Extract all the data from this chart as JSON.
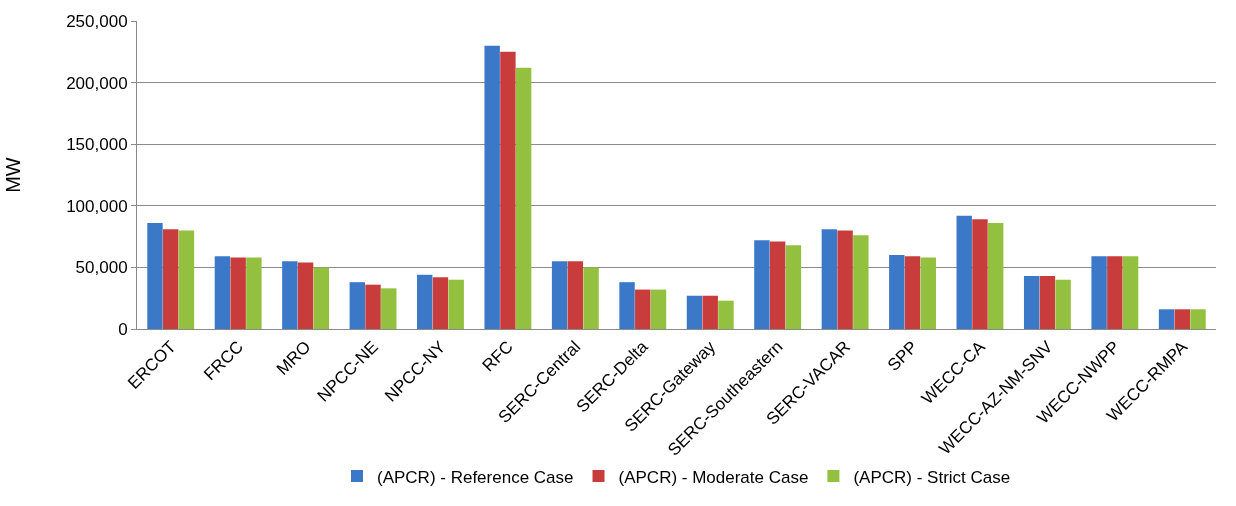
{
  "chart_data": {
    "type": "bar",
    "ylabel": "MW",
    "categories": [
      "ERCOT",
      "FRCC",
      "MRO",
      "NPCC-NE",
      "NPCC-NY",
      "RFC",
      "SERC-Central",
      "SERC-Delta",
      "SERC-Gateway",
      "SERC-Southeastern",
      "SERC-VACAR",
      "SPP",
      "WECC-CA",
      "WECC-AZ-NM-SNV",
      "WECC-NWPP",
      "WECC-RMPA"
    ],
    "series": [
      {
        "name": "(APCR) - Reference Case",
        "color": "#3c78c8",
        "values": [
          86000,
          59000,
          55000,
          38000,
          44000,
          230000,
          55000,
          38000,
          27000,
          72000,
          81000,
          60000,
          92000,
          43000,
          59000,
          16000
        ]
      },
      {
        "name": "(APCR) - Moderate Case",
        "color": "#c83c3c",
        "values": [
          81000,
          58000,
          54000,
          36000,
          42000,
          225000,
          55000,
          32000,
          27000,
          71000,
          80000,
          59000,
          89000,
          43000,
          59000,
          16000
        ]
      },
      {
        "name": "(APCR) - Strict Case",
        "color": "#94c040",
        "values": [
          80000,
          58000,
          50000,
          33000,
          40000,
          212000,
          50000,
          32000,
          23000,
          68000,
          76000,
          58000,
          86000,
          40000,
          59000,
          16000
        ]
      }
    ],
    "ylim": [
      0,
      250000
    ],
    "yticks": [
      {
        "value": 0,
        "label": "0"
      },
      {
        "value": 50000,
        "label": "50,000"
      },
      {
        "value": 100000,
        "label": "100,000"
      },
      {
        "value": 150000,
        "label": "150,000"
      },
      {
        "value": 200000,
        "label": "200,000"
      },
      {
        "value": 250000,
        "label": "250,000"
      }
    ],
    "grid": "y",
    "legend": "bottom"
  }
}
